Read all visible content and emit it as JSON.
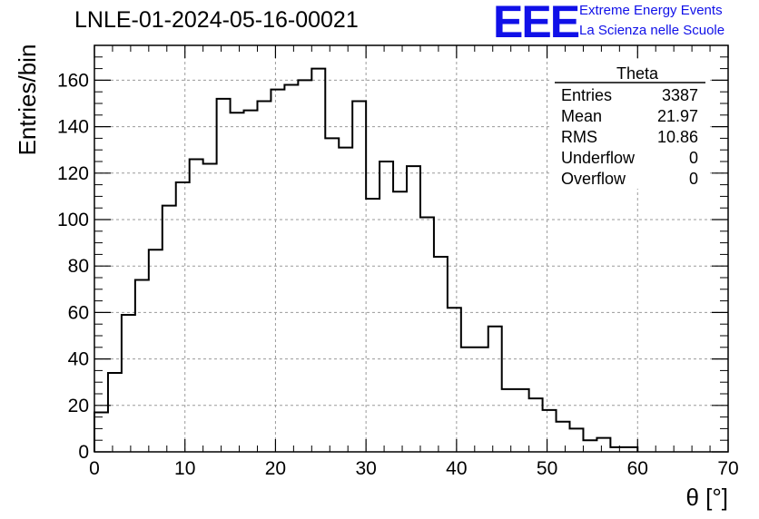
{
  "chart_data": {
    "type": "histogram",
    "title": "LNLE-01-2024-05-16-00021",
    "xlabel": "θ [°]",
    "ylabel": "Entries/bin",
    "xlim": [
      0,
      70
    ],
    "ylim": [
      0,
      175
    ],
    "bin_width": 1.5,
    "x_ticks": [
      0,
      10,
      20,
      30,
      40,
      50,
      60,
      70
    ],
    "y_ticks": [
      0,
      20,
      40,
      60,
      80,
      100,
      120,
      140,
      160
    ],
    "grid": true,
    "bins": [
      {
        "x": 0.0,
        "y": 17
      },
      {
        "x": 1.5,
        "y": 34
      },
      {
        "x": 3.0,
        "y": 59
      },
      {
        "x": 4.5,
        "y": 74
      },
      {
        "x": 6.0,
        "y": 87
      },
      {
        "x": 7.5,
        "y": 106
      },
      {
        "x": 9.0,
        "y": 116
      },
      {
        "x": 10.5,
        "y": 126
      },
      {
        "x": 12.0,
        "y": 124
      },
      {
        "x": 13.5,
        "y": 152
      },
      {
        "x": 15.0,
        "y": 146
      },
      {
        "x": 16.5,
        "y": 147
      },
      {
        "x": 18.0,
        "y": 151
      },
      {
        "x": 19.5,
        "y": 156
      },
      {
        "x": 21.0,
        "y": 158
      },
      {
        "x": 22.5,
        "y": 160
      },
      {
        "x": 24.0,
        "y": 165
      },
      {
        "x": 25.5,
        "y": 135
      },
      {
        "x": 27.0,
        "y": 131
      },
      {
        "x": 28.5,
        "y": 151
      },
      {
        "x": 30.0,
        "y": 109
      },
      {
        "x": 31.5,
        "y": 125
      },
      {
        "x": 33.0,
        "y": 112
      },
      {
        "x": 34.5,
        "y": 123
      },
      {
        "x": 36.0,
        "y": 101
      },
      {
        "x": 37.5,
        "y": 84
      },
      {
        "x": 39.0,
        "y": 62
      },
      {
        "x": 40.5,
        "y": 45
      },
      {
        "x": 42.0,
        "y": 45
      },
      {
        "x": 43.5,
        "y": 54
      },
      {
        "x": 45.0,
        "y": 27
      },
      {
        "x": 46.5,
        "y": 27
      },
      {
        "x": 48.0,
        "y": 23
      },
      {
        "x": 49.5,
        "y": 18
      },
      {
        "x": 51.0,
        "y": 13
      },
      {
        "x": 52.5,
        "y": 10
      },
      {
        "x": 54.0,
        "y": 5
      },
      {
        "x": 55.5,
        "y": 6
      },
      {
        "x": 57.0,
        "y": 2
      },
      {
        "x": 58.5,
        "y": 2
      }
    ],
    "stats": {
      "name": "Theta",
      "rows": [
        {
          "label": "Entries",
          "value": "3387"
        },
        {
          "label": "Mean",
          "value": "21.97"
        },
        {
          "label": "RMS",
          "value": "10.86"
        },
        {
          "label": "Underflow",
          "value": "0"
        },
        {
          "label": "Overflow",
          "value": "0"
        }
      ]
    }
  },
  "logo": {
    "text": "EEE",
    "line1": "Extreme Energy Events",
    "line2": "La Scienza nelle Scuole",
    "color": "#1010e8"
  }
}
